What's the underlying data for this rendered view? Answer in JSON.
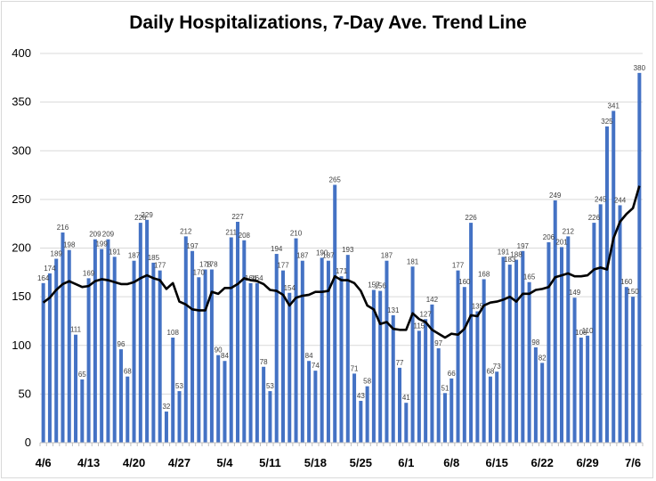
{
  "chart_data": {
    "type": "bar",
    "title": "Daily Hospitalizations, 7-Day Ave. Trend Line",
    "xlabel": "",
    "ylabel": "",
    "ylim": [
      0,
      400
    ],
    "yticks": [
      0,
      50,
      100,
      150,
      200,
      250,
      300,
      350,
      400
    ],
    "grid": "horizontal",
    "legend": "none",
    "colors": {
      "bars": "#4472c4",
      "trend": "#000000",
      "grid": "#d9d9d9"
    },
    "x_tick_labels": [
      {
        "index": 0,
        "label": "4/6"
      },
      {
        "index": 7,
        "label": "4/13"
      },
      {
        "index": 14,
        "label": "4/20"
      },
      {
        "index": 21,
        "label": "4/27"
      },
      {
        "index": 28,
        "label": "5/4"
      },
      {
        "index": 35,
        "label": "5/11"
      },
      {
        "index": 42,
        "label": "5/18"
      },
      {
        "index": 49,
        "label": "5/25"
      },
      {
        "index": 56,
        "label": "6/1"
      },
      {
        "index": 63,
        "label": "6/8"
      },
      {
        "index": 70,
        "label": "6/15"
      },
      {
        "index": 77,
        "label": "6/22"
      },
      {
        "index": 84,
        "label": "6/29"
      },
      {
        "index": 91,
        "label": "7/6"
      }
    ],
    "series": [
      {
        "type": "bar",
        "values": [
          164,
          174,
          189,
          216,
          198,
          111,
          65,
          169,
          209,
          199,
          209,
          191,
          96,
          68,
          187,
          226,
          229,
          185,
          177,
          32,
          108,
          53,
          212,
          197,
          170,
          178,
          178,
          90,
          84,
          211,
          227,
          208,
          164,
          164,
          78,
          53,
          194,
          177,
          154,
          210,
          187,
          84,
          74,
          190,
          187,
          265,
          171,
          193,
          71,
          43,
          58,
          157,
          156,
          187,
          131,
          77,
          41,
          181,
          115,
          127,
          142,
          97,
          51,
          66,
          177,
          160,
          226,
          135,
          168,
          68,
          73,
          191,
          183,
          188,
          197,
          165,
          98,
          82,
          206,
          249,
          201,
          212,
          149,
          108,
          110,
          226,
          245,
          325,
          341,
          244,
          160,
          150,
          380
        ]
      },
      {
        "type": "line",
        "values": [
          144,
          149,
          157,
          163,
          166,
          163,
          160,
          161,
          166,
          168,
          167,
          165,
          163,
          163,
          165,
          169,
          172,
          169,
          167,
          158,
          164,
          145,
          142,
          137,
          136,
          136,
          155,
          153,
          159,
          159,
          163,
          169,
          167,
          166,
          163,
          157,
          156,
          152,
          141,
          149,
          151,
          152,
          155,
          155,
          156,
          171,
          167,
          167,
          164,
          156,
          141,
          137,
          122,
          124,
          117,
          116,
          116,
          133,
          127,
          124,
          116,
          112,
          108,
          112,
          111,
          117,
          131,
          130,
          141,
          144,
          145,
          147,
          150,
          145,
          153,
          153,
          157,
          158,
          160,
          170,
          172,
          174,
          171,
          171,
          172,
          178,
          180,
          178,
          210,
          227,
          235,
          241,
          264
        ]
      }
    ]
  }
}
